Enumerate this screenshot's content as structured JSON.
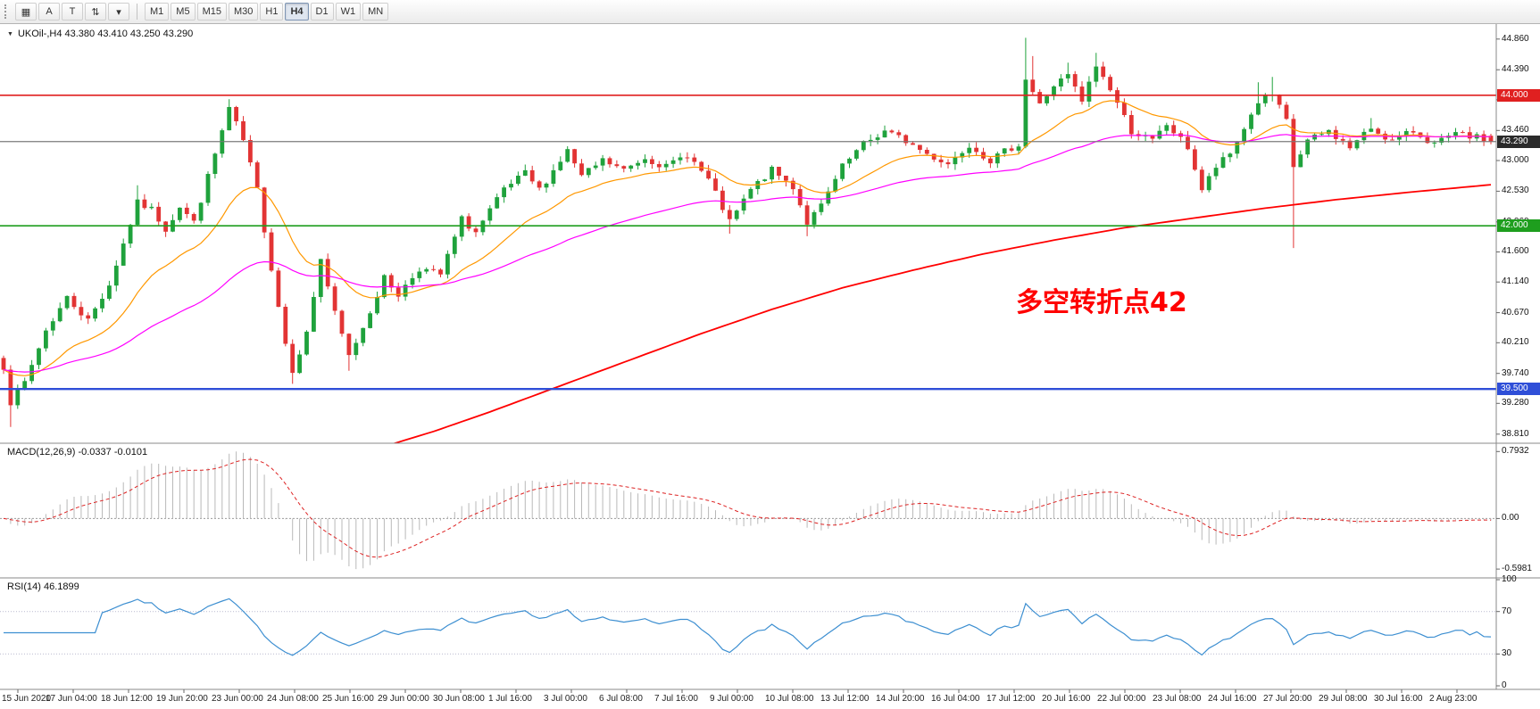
{
  "toolbar": {
    "icons": [
      {
        "name": "chart-window-icon",
        "glyph": "▦"
      },
      {
        "name": "crosshair-tool-icon",
        "glyph": "A"
      },
      {
        "name": "text-tool-icon",
        "glyph": "T"
      },
      {
        "name": "scroll-arrows-icon",
        "glyph": "⇅"
      },
      {
        "name": "dropdown-arrow-icon",
        "glyph": "▾"
      }
    ],
    "timeframes": [
      {
        "label": "M1",
        "active": false
      },
      {
        "label": "M5",
        "active": false
      },
      {
        "label": "M15",
        "active": false
      },
      {
        "label": "M30",
        "active": false
      },
      {
        "label": "H1",
        "active": false
      },
      {
        "label": "H4",
        "active": true
      },
      {
        "label": "D1",
        "active": false
      },
      {
        "label": "W1",
        "active": false
      },
      {
        "label": "MN",
        "active": false
      }
    ]
  },
  "chart": {
    "title": "UKOil-,H4 43.380 43.410 43.250 43.290",
    "annotation": "多空转折点42",
    "price_axis_labels": [
      "44.860",
      "44.390",
      "43.930",
      "43.460",
      "43.000",
      "42.530",
      "42.060",
      "41.600",
      "41.140",
      "40.670",
      "40.210",
      "39.740",
      "39.280",
      "38.810"
    ],
    "price_badges": [
      {
        "value": "44.000",
        "price": 44.0,
        "color": "#e02020"
      },
      {
        "value": "43.290",
        "price": 43.29,
        "color": "#2b2b2b"
      },
      {
        "value": "42.000",
        "price": 42.0,
        "color": "#1e9e1e"
      },
      {
        "value": "39.500",
        "price": 39.5,
        "color": "#2f4fd8"
      }
    ],
    "hlines": [
      {
        "price": 44.0,
        "color": "#e02020",
        "width": 1.6
      },
      {
        "price": 43.29,
        "color": "#787878",
        "width": 1
      },
      {
        "price": 42.0,
        "color": "#1e9e1e",
        "width": 1.6
      },
      {
        "price": 39.5,
        "color": "#2f4fd8",
        "width": 2.4
      }
    ]
  },
  "macd": {
    "label": "MACD(12,26,9) -0.0337 -0.0101",
    "axis_labels": [
      "0.7932",
      "0.00",
      "-0.5981"
    ]
  },
  "rsi": {
    "label": "RSI(14) 46.1899",
    "axis_labels": [
      "100",
      "70",
      "30",
      "0"
    ]
  },
  "time_axis": [
    "15 Jun 2020",
    "17 Jun 04:00",
    "18 Jun 12:00",
    "19 Jun 20:00",
    "23 Jun 00:00",
    "24 Jun 08:00",
    "25 Jun 16:00",
    "29 Jun 00:00",
    "30 Jun 08:00",
    "1 Jul 16:00",
    "3 Jul 00:00",
    "6 Jul 08:00",
    "7 Jul 16:00",
    "9 Jul 00:00",
    "10 Jul 08:00",
    "13 Jul 12:00",
    "14 Jul 20:00",
    "16 Jul 04:00",
    "17 Jul 12:00",
    "20 Jul 16:00",
    "22 Jul 00:00",
    "23 Jul 08:00",
    "24 Jul 16:00",
    "27 Jul 20:00",
    "29 Jul 08:00",
    "30 Jul 16:00",
    "2 Aug 23:00"
  ],
  "chart_data": {
    "type": "candlestick",
    "symbol": "UKOil-",
    "timeframe": "H4",
    "ohlc_current": {
      "open": 43.38,
      "high": 43.41,
      "low": 43.25,
      "close": 43.29
    },
    "macd_current": {
      "macd": -0.0337,
      "signal": -0.0101
    },
    "rsi_current": 46.1899,
    "bars": 212,
    "price_range": [
      38.67,
      45.09
    ],
    "macd_axis": {
      "max": 0.7932,
      "min": -0.5981
    },
    "macd_range": [
      -0.65,
      0.86
    ],
    "rsi_levels": [
      70,
      30
    ],
    "ma_periods": {
      "fast": 18,
      "mid": 55
    },
    "close_waypoints": [
      [
        0,
        39.85
      ],
      [
        1,
        39.3
      ],
      [
        3,
        39.6
      ],
      [
        6,
        40.4
      ],
      [
        9,
        40.9
      ],
      [
        12,
        40.55
      ],
      [
        15,
        41.1
      ],
      [
        19,
        42.35
      ],
      [
        21,
        42.25
      ],
      [
        23,
        41.95
      ],
      [
        25,
        42.3
      ],
      [
        27,
        42.05
      ],
      [
        30,
        43.1
      ],
      [
        32,
        43.8
      ],
      [
        34,
        43.3
      ],
      [
        36,
        42.55
      ],
      [
        38,
        41.35
      ],
      [
        40,
        40.2
      ],
      [
        41,
        39.8
      ],
      [
        43,
        40.35
      ],
      [
        45,
        41.5
      ],
      [
        47,
        40.65
      ],
      [
        49,
        40.0
      ],
      [
        51,
        40.45
      ],
      [
        54,
        41.2
      ],
      [
        56,
        40.95
      ],
      [
        59,
        41.35
      ],
      [
        62,
        41.25
      ],
      [
        65,
        42.1
      ],
      [
        67,
        41.9
      ],
      [
        71,
        42.55
      ],
      [
        74,
        42.8
      ],
      [
        76,
        42.55
      ],
      [
        80,
        43.15
      ],
      [
        82,
        42.75
      ],
      [
        85,
        43.0
      ],
      [
        88,
        42.85
      ],
      [
        91,
        43.05
      ],
      [
        94,
        42.9
      ],
      [
        97,
        43.1
      ],
      [
        100,
        42.7
      ],
      [
        103,
        42.05
      ],
      [
        106,
        42.55
      ],
      [
        109,
        42.85
      ],
      [
        112,
        42.6
      ],
      [
        114,
        42.05
      ],
      [
        116,
        42.3
      ],
      [
        119,
        42.9
      ],
      [
        122,
        43.25
      ],
      [
        125,
        43.45
      ],
      [
        128,
        43.3
      ],
      [
        131,
        43.1
      ],
      [
        134,
        42.95
      ],
      [
        137,
        43.25
      ],
      [
        140,
        43.0
      ],
      [
        143,
        43.2
      ],
      [
        144,
        43.25
      ],
      [
        145,
        44.25
      ],
      [
        147,
        43.85
      ],
      [
        149,
        44.15
      ],
      [
        151,
        44.3
      ],
      [
        153,
        43.9
      ],
      [
        155,
        44.45
      ],
      [
        157,
        44.1
      ],
      [
        160,
        43.45
      ],
      [
        163,
        43.3
      ],
      [
        165,
        43.55
      ],
      [
        168,
        43.2
      ],
      [
        170,
        42.55
      ],
      [
        172,
        42.9
      ],
      [
        174,
        43.1
      ],
      [
        176,
        43.5
      ],
      [
        178,
        43.9
      ],
      [
        180,
        44.0
      ],
      [
        182,
        43.6
      ],
      [
        183,
        42.9
      ],
      [
        185,
        43.3
      ],
      [
        188,
        43.45
      ],
      [
        191,
        43.2
      ],
      [
        194,
        43.5
      ],
      [
        197,
        43.3
      ],
      [
        200,
        43.45
      ],
      [
        203,
        43.25
      ],
      [
        206,
        43.4
      ],
      [
        209,
        43.35
      ],
      [
        211,
        43.29
      ]
    ],
    "wick_events": [
      {
        "bar": 1,
        "low": 38.92
      },
      {
        "bar": 19,
        "high": 42.62
      },
      {
        "bar": 23,
        "low": 41.83
      },
      {
        "bar": 32,
        "high": 43.94
      },
      {
        "bar": 33,
        "high": 43.6
      },
      {
        "bar": 41,
        "low": 39.58
      },
      {
        "bar": 49,
        "low": 39.78
      },
      {
        "bar": 103,
        "low": 41.88
      },
      {
        "bar": 114,
        "low": 41.84
      },
      {
        "bar": 145,
        "high": 44.88
      },
      {
        "bar": 146,
        "high": 44.6
      },
      {
        "bar": 151,
        "high": 44.5
      },
      {
        "bar": 155,
        "high": 44.65
      },
      {
        "bar": 178,
        "high": 44.2
      },
      {
        "bar": 180,
        "high": 44.28
      },
      {
        "bar": 183,
        "low": 41.66
      },
      {
        "bar": 194,
        "high": 43.65
      }
    ],
    "ma_slow_waypoints": [
      [
        46,
        38.35
      ],
      [
        54,
        38.62
      ],
      [
        61,
        38.85
      ],
      [
        69,
        39.15
      ],
      [
        79,
        39.55
      ],
      [
        89,
        39.95
      ],
      [
        99,
        40.35
      ],
      [
        109,
        40.72
      ],
      [
        119,
        41.05
      ],
      [
        129,
        41.32
      ],
      [
        139,
        41.57
      ],
      [
        149,
        41.78
      ],
      [
        159,
        41.97
      ],
      [
        169,
        42.12
      ],
      [
        179,
        42.27
      ],
      [
        189,
        42.4
      ],
      [
        200,
        42.52
      ],
      [
        211,
        42.63
      ]
    ],
    "colors": {
      "up": "#1fa23c",
      "down": "#e23434",
      "ma_fast": "#ff9800",
      "ma_mid": "#ff00ff",
      "ma_slow": "#ff0000",
      "macd_hist": "#b9b9b9",
      "macd_signal": "#dd2222",
      "rsi": "#3d8fd1",
      "annotation": "#ff0000",
      "hline_red": "#e02020",
      "hline_green": "#1e9e1e",
      "hline_blue": "#2f4fd8"
    }
  }
}
